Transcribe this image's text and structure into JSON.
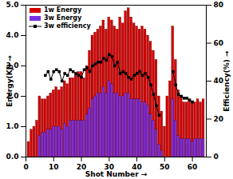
{
  "chart_data": {
    "type": "bar",
    "stacked": false,
    "x_label": "Shot Number",
    "y_label": "Energy(KJ)",
    "y2_label": "Efficiency(%)",
    "legend": "upper left",
    "x": [
      1,
      2,
      3,
      4,
      5,
      6,
      7,
      8,
      9,
      10,
      11,
      12,
      13,
      14,
      15,
      16,
      17,
      18,
      19,
      20,
      21,
      22,
      23,
      24,
      25,
      26,
      27,
      28,
      29,
      30,
      31,
      32,
      33,
      34,
      35,
      36,
      37,
      38,
      39,
      40,
      41,
      42,
      43,
      44,
      45,
      46,
      47,
      48,
      49,
      50,
      51,
      52,
      53,
      54,
      55,
      56,
      57,
      58,
      59,
      60,
      61,
      62,
      63,
      64
    ],
    "xlim": [
      0,
      65
    ],
    "xticks": [
      0,
      10,
      20,
      30,
      40,
      50,
      60
    ],
    "ylim": [
      0,
      5
    ],
    "yticks": [
      0,
      1,
      2,
      3,
      4,
      5
    ],
    "y2lim": [
      0,
      80
    ],
    "y2ticks": [
      0,
      20,
      40,
      60,
      80
    ],
    "series": [
      {
        "name": "1w Energy",
        "type": "bar",
        "color": "#d40000",
        "values": [
          0.5,
          0.9,
          1.0,
          1.2,
          2.0,
          1.9,
          1.9,
          2.0,
          2.1,
          2.2,
          2.3,
          2.2,
          2.3,
          2.5,
          2.4,
          2.6,
          2.6,
          2.7,
          2.8,
          2.8,
          2.6,
          3.0,
          3.5,
          4.0,
          4.1,
          4.2,
          4.3,
          4.5,
          4.2,
          4.6,
          4.5,
          4.3,
          4.2,
          4.6,
          4.4,
          4.8,
          4.9,
          4.6,
          4.4,
          4.3,
          4.2,
          4.3,
          4.2,
          4.0,
          3.8,
          3.5,
          3.2,
          2.0,
          1.5,
          1.0,
          2.0,
          2.5,
          4.3,
          3.2,
          2.2,
          2.0,
          1.8,
          1.8,
          1.9,
          1.8,
          1.8,
          1.9,
          1.8,
          1.9
        ]
      },
      {
        "name": "3w Energy",
        "type": "bar",
        "color": "#7a2ee0",
        "values": [
          0,
          0,
          0,
          0,
          0.7,
          0.8,
          0.8,
          0.9,
          0.9,
          1.0,
          1.0,
          1.0,
          0.9,
          1.1,
          1.0,
          1.2,
          1.2,
          1.2,
          1.2,
          1.2,
          1.2,
          1.4,
          1.6,
          1.9,
          2.0,
          2.1,
          2.1,
          2.3,
          2.1,
          2.5,
          2.4,
          2.1,
          2.1,
          2.0,
          2.0,
          2.1,
          2.1,
          1.9,
          1.9,
          1.9,
          1.9,
          1.8,
          1.8,
          1.7,
          1.4,
          1.2,
          0.9,
          0.4,
          0.2,
          0,
          0,
          0,
          1.9,
          1.2,
          0.7,
          0.6,
          0.6,
          0.6,
          0.6,
          0.5,
          0.6,
          0.6,
          0.6,
          0.6
        ]
      },
      {
        "name": "3w efficiency",
        "type": "line",
        "axis": "y2",
        "color": "#000000",
        "marker": "square",
        "values": [
          null,
          null,
          null,
          null,
          null,
          null,
          43,
          45,
          41,
          45,
          46,
          45,
          40,
          44,
          43,
          46,
          45,
          44,
          43,
          42,
          46,
          47,
          45,
          48,
          49,
          50,
          50,
          52,
          51,
          54,
          53,
          48,
          50,
          44,
          45,
          44,
          42,
          41,
          43,
          44,
          45,
          43,
          44,
          42,
          38,
          33,
          27,
          22,
          null,
          null,
          null,
          null,
          45,
          38,
          33,
          32,
          31,
          31,
          30,
          29,
          null,
          null,
          null,
          null
        ]
      }
    ]
  }
}
